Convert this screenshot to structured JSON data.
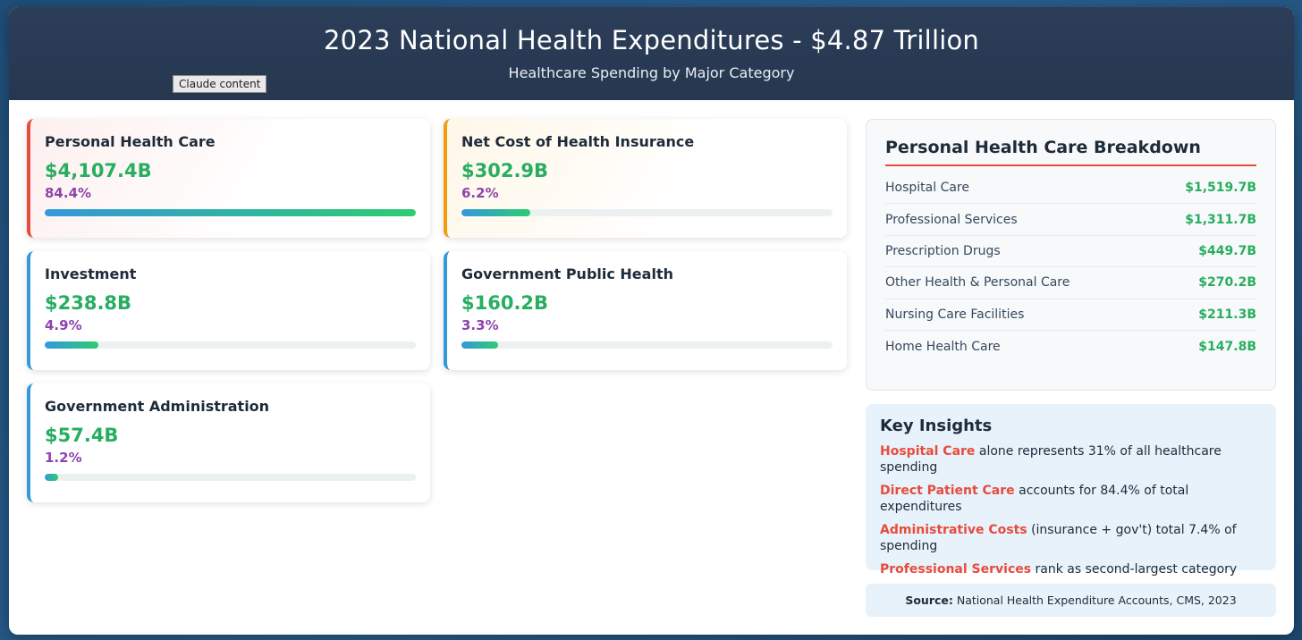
{
  "header": {
    "title": "2023 National Health Expenditures - $4.87 Trillion",
    "subtitle": "Healthcare Spending by Major Category",
    "tag": "Claude content"
  },
  "cards": [
    {
      "title": "Personal Health Care",
      "amount": "$4,107.4B",
      "percent": "84.4%",
      "fill": 1.0,
      "accent": "#e74c3c"
    },
    {
      "title": "Net Cost of Health Insurance",
      "amount": "$302.9B",
      "percent": "6.2%",
      "fill": 0.185,
      "accent": "#f39c12"
    },
    {
      "title": "Investment",
      "amount": "$238.8B",
      "percent": "4.9%",
      "fill": 0.145,
      "accent": "#3498db"
    },
    {
      "title": "Government Public Health",
      "amount": "$160.2B",
      "percent": "3.3%",
      "fill": 0.098,
      "accent": "#3498db"
    },
    {
      "title": "Government Administration",
      "amount": "$57.4B",
      "percent": "1.2%",
      "fill": 0.035,
      "accent": "#3498db"
    }
  ],
  "breakdown": {
    "title": "Personal Health Care Breakdown",
    "rows": [
      {
        "label": "Hospital Care",
        "value": "$1,519.7B"
      },
      {
        "label": "Professional Services",
        "value": "$1,311.7B"
      },
      {
        "label": "Prescription Drugs",
        "value": "$449.7B"
      },
      {
        "label": "Other Health & Personal Care",
        "value": "$270.2B"
      },
      {
        "label": "Nursing Care Facilities",
        "value": "$211.3B"
      },
      {
        "label": "Home Health Care",
        "value": "$147.8B"
      }
    ]
  },
  "insights": {
    "title": "Key Insights",
    "items": [
      {
        "highlight": "Hospital Care",
        "text": " alone represents 31% of all healthcare spending"
      },
      {
        "highlight": "Direct Patient Care",
        "text": " accounts for 84.4% of total expenditures"
      },
      {
        "highlight": "Administrative Costs",
        "text": " (insurance + gov't) total 7.4% of spending"
      },
      {
        "highlight": "Professional Services",
        "text": " rank as second-largest category"
      }
    ]
  },
  "source": {
    "label": "Source:",
    "text": " National Health Expenditure Accounts, CMS, 2023"
  },
  "colors": {
    "amount": "#27ae60",
    "percent": "#8e44ad",
    "highlight": "#e74c3c"
  }
}
